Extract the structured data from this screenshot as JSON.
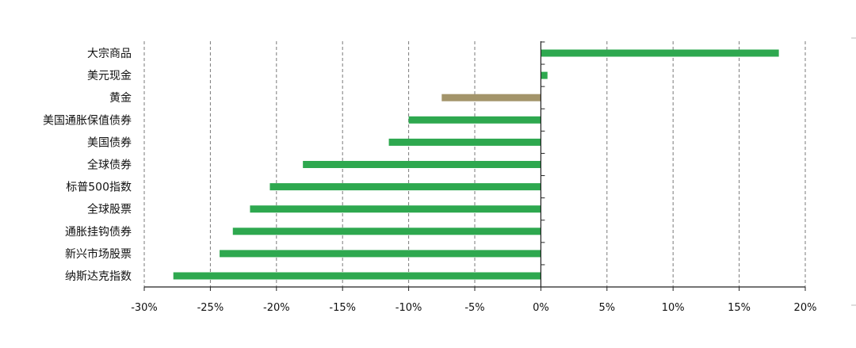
{
  "chart_data": {
    "type": "bar",
    "orientation": "horizontal",
    "categories": [
      "大宗商品",
      "美元现金",
      "黄金",
      "美国通胀保值债券",
      "美国债券",
      "全球债券",
      "标普500指数",
      "全球股票",
      "通胀挂钩债券",
      "新兴市场股票",
      "纳斯达克指数"
    ],
    "values": [
      18,
      0.5,
      -7.5,
      -10,
      -11.5,
      -18,
      -20.5,
      -22,
      -23.3,
      -24.3,
      -27.8
    ],
    "colors": [
      "#2ea84f",
      "#2ea84f",
      "#a3946a",
      "#2ea84f",
      "#2ea84f",
      "#2ea84f",
      "#2ea84f",
      "#2ea84f",
      "#2ea84f",
      "#2ea84f",
      "#2ea84f"
    ],
    "xlim": [
      -30,
      20
    ],
    "xticks": [
      -30,
      -25,
      -20,
      -15,
      -10,
      -5,
      0,
      5,
      10,
      15,
      20
    ],
    "xtick_labels": [
      "-30%",
      "-25%",
      "-20%",
      "-15%",
      "-10%",
      "-5%",
      "0%",
      "5%",
      "10%",
      "15%",
      "20%"
    ],
    "grid": "vertical dashed",
    "title": "",
    "xlabel": "",
    "ylabel": ""
  }
}
